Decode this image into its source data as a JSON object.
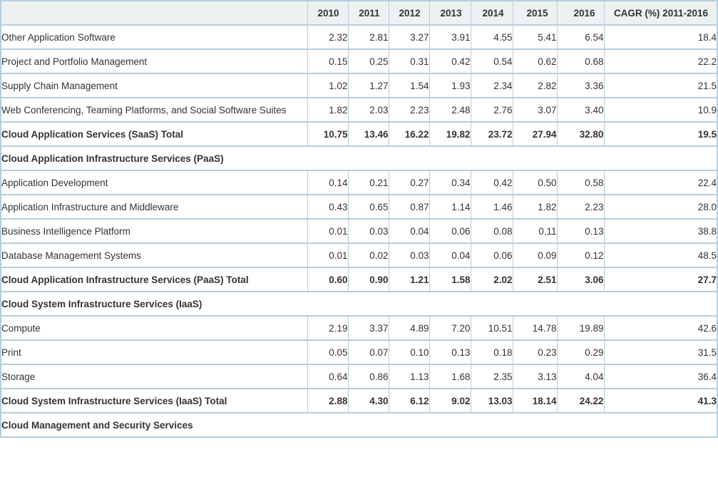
{
  "chart_data": {
    "type": "table",
    "columns": [
      "",
      "2010",
      "2011",
      "2012",
      "2013",
      "2014",
      "2015",
      "2016",
      "CAGR (%) 2011-2016"
    ],
    "rows": [
      {
        "type": "data",
        "label": "Other Application Software",
        "values": [
          "2.32",
          "2.81",
          "3.27",
          "3.91",
          "4.55",
          "5.41",
          "6.54",
          "18.4"
        ]
      },
      {
        "type": "data",
        "label": "Project and Portfolio Management",
        "values": [
          "0.15",
          "0.25",
          "0.31",
          "0.42",
          "0.54",
          "0.62",
          "0.68",
          "22.2"
        ]
      },
      {
        "type": "data",
        "label": "Supply Chain Management",
        "values": [
          "1.02",
          "1.27",
          "1.54",
          "1.93",
          "2.34",
          "2.82",
          "3.36",
          "21.5"
        ]
      },
      {
        "type": "data",
        "label": "Web Conferencing, Teaming Platforms, and Social Software Suites",
        "values": [
          "1.82",
          "2.03",
          "2.23",
          "2.48",
          "2.76",
          "3.07",
          "3.40",
          "10.9"
        ]
      },
      {
        "type": "total",
        "label": "Cloud Application Services (SaaS) Total",
        "values": [
          "10.75",
          "13.46",
          "16.22",
          "19.82",
          "23.72",
          "27.94",
          "32.80",
          "19.5"
        ]
      },
      {
        "type": "section",
        "label": "Cloud Application Infrastructure Services (PaaS)"
      },
      {
        "type": "data",
        "label": "Application Development",
        "values": [
          "0.14",
          "0.21",
          "0.27",
          "0.34",
          "0.42",
          "0.50",
          "0.58",
          "22.4"
        ]
      },
      {
        "type": "data",
        "label": "Application Infrastructure and Middleware",
        "values": [
          "0.43",
          "0.65",
          "0.87",
          "1.14",
          "1.46",
          "1.82",
          "2.23",
          "28.0"
        ]
      },
      {
        "type": "data",
        "label": "Business Intelligence Platform",
        "values": [
          "0.01",
          "0.03",
          "0.04",
          "0.06",
          "0.08",
          "0.11",
          "0.13",
          "38.8"
        ]
      },
      {
        "type": "data",
        "label": "Database Management Systems",
        "values": [
          "0.01",
          "0.02",
          "0.03",
          "0.04",
          "0.06",
          "0.09",
          "0.12",
          "48.5"
        ]
      },
      {
        "type": "total",
        "label": "Cloud Application Infrastructure Services (PaaS) Total",
        "values": [
          "0.60",
          "0.90",
          "1.21",
          "1.58",
          "2.02",
          "2.51",
          "3.06",
          "27.7"
        ]
      },
      {
        "type": "section",
        "label": "Cloud System Infrastructure Services (IaaS)"
      },
      {
        "type": "data",
        "label": "Compute",
        "values": [
          "2.19",
          "3.37",
          "4.89",
          "7.20",
          "10.51",
          "14.78",
          "19.89",
          "42.6"
        ]
      },
      {
        "type": "data",
        "label": "Print",
        "values": [
          "0.05",
          "0.07",
          "0.10",
          "0.13",
          "0.18",
          "0.23",
          "0.29",
          "31.5"
        ]
      },
      {
        "type": "data",
        "label": "Storage",
        "values": [
          "0.64",
          "0.86",
          "1.13",
          "1.68",
          "2.35",
          "3.13",
          "4.04",
          "36.4"
        ]
      },
      {
        "type": "total",
        "label": "Cloud System Infrastructure Services (IaaS) Total",
        "values": [
          "2.88",
          "4.30",
          "6.12",
          "9.02",
          "13.03",
          "18.14",
          "24.22",
          "41.3"
        ]
      },
      {
        "type": "section",
        "label": "Cloud Management and Security Services"
      }
    ]
  },
  "colors": {
    "border": "#b5cedf",
    "header_bg": "#eef1f2",
    "text": "#333333",
    "row_bg": "#ffffff"
  }
}
